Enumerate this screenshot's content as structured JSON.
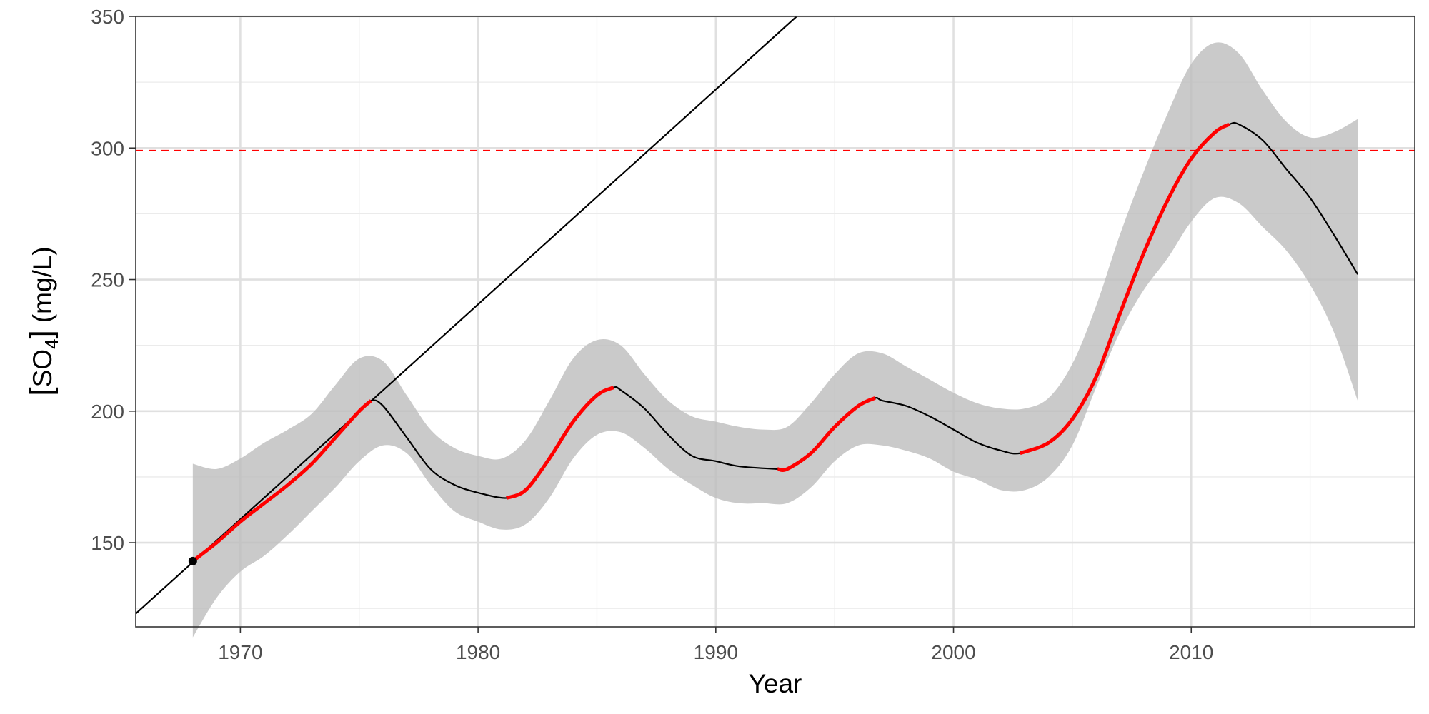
{
  "chart_data": {
    "type": "line",
    "xlabel": "Year",
    "ylabel_open": "[",
    "ylabel_chem": "SO",
    "ylabel_sub": "4",
    "ylabel_close": "]",
    "ylabel_unit": "(mg/L)",
    "xlim": [
      1965.6,
      2019.4
    ],
    "ylim": [
      118,
      350
    ],
    "x_ticks": [
      1970,
      1980,
      1990,
      2000,
      2010
    ],
    "x_tick_labels": [
      "1970",
      "1980",
      "1990",
      "2000",
      "2010"
    ],
    "y_ticks": [
      150,
      200,
      250,
      300,
      350
    ],
    "y_tick_labels": [
      "150",
      "200",
      "250",
      "300",
      "350"
    ],
    "grid": true,
    "threshold": {
      "y": 299,
      "color": "#ff0000",
      "style": "dashed"
    },
    "tangent_line": {
      "x0": 1965.6,
      "y0": 123,
      "x1": 1993.4,
      "y1": 350,
      "color": "#000000"
    },
    "point": {
      "x": 1968,
      "y": 143,
      "color": "#000000"
    },
    "trend": {
      "color": "#000000",
      "x": [
        1968,
        1969,
        1970,
        1971,
        1972,
        1973,
        1974,
        1975,
        1975.5,
        1976,
        1977,
        1978,
        1979,
        1980,
        1981.2,
        1982,
        1983,
        1984,
        1985,
        1985.7,
        1986,
        1987,
        1988,
        1989,
        1990,
        1991,
        1992.6,
        1993,
        1994,
        1995,
        1996,
        1996.7,
        1997,
        1998,
        1999,
        2000,
        2001,
        2002,
        2002.8,
        2004,
        2005,
        2006,
        2007,
        2008,
        2009,
        2010,
        2011,
        2011.6,
        2012,
        2013,
        2014,
        2015,
        2016,
        2017
      ],
      "y": [
        143,
        150,
        158,
        165,
        172,
        180,
        190,
        200,
        204,
        202,
        190,
        178,
        172,
        169,
        167,
        170,
        182,
        196,
        206,
        209,
        208,
        201,
        191,
        183,
        181,
        179,
        178,
        178,
        184,
        194,
        202,
        205,
        204,
        202,
        198,
        193,
        188,
        185,
        184,
        188,
        197,
        213,
        237,
        260,
        280,
        296,
        306,
        309,
        309,
        303,
        292,
        281,
        267,
        252
      ]
    },
    "ci_band": {
      "color": "#bdbdbd",
      "x": [
        1968,
        1969,
        1970,
        1971,
        1972,
        1973,
        1974,
        1975,
        1976,
        1977,
        1978,
        1979,
        1980,
        1981,
        1982,
        1983,
        1984,
        1985,
        1986,
        1987,
        1988,
        1989,
        1990,
        1991,
        1992,
        1993,
        1994,
        1995,
        1996,
        1997,
        1998,
        1999,
        2000,
        2001,
        2002,
        2003,
        2004,
        2005,
        2006,
        2007,
        2008,
        2009,
        2010,
        2011,
        2012,
        2013,
        2014,
        2015,
        2016,
        2017
      ],
      "upper": [
        180,
        178,
        182,
        188,
        193,
        199,
        210,
        220,
        219,
        206,
        193,
        186,
        183,
        182,
        189,
        204,
        220,
        227,
        225,
        214,
        204,
        198,
        196,
        194,
        193,
        194,
        203,
        214,
        222,
        222,
        217,
        212,
        207,
        203,
        201,
        201,
        205,
        218,
        240,
        267,
        291,
        313,
        332,
        340,
        336,
        322,
        310,
        304,
        306,
        311
      ],
      "lower": [
        114,
        129,
        139,
        145,
        153,
        162,
        171,
        181,
        187,
        184,
        172,
        162,
        158,
        155,
        157,
        167,
        182,
        191,
        192,
        186,
        178,
        172,
        167,
        165,
        165,
        165,
        171,
        181,
        187,
        187,
        185,
        182,
        177,
        174,
        170,
        170,
        175,
        187,
        209,
        230,
        246,
        258,
        272,
        281,
        279,
        270,
        261,
        248,
        230,
        204
      ]
    },
    "highlight_segments": {
      "color": "#ff0000",
      "ranges": [
        [
          1968,
          1975.5
        ],
        [
          1981.2,
          1985.7
        ],
        [
          1992.6,
          1996.7
        ],
        [
          2002.8,
          2011.6
        ]
      ]
    }
  }
}
